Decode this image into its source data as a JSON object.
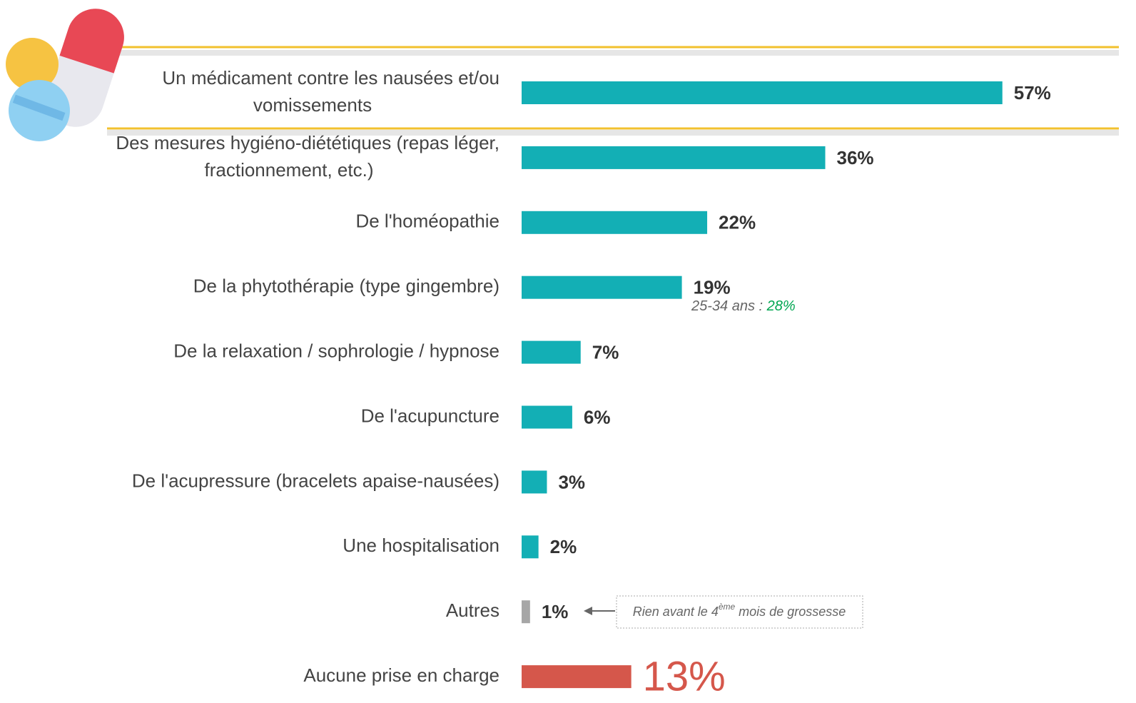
{
  "chart_data": {
    "type": "hbar",
    "categories": [
      "Un médicament contre les nausées et/ou\nvomissements",
      "Des mesures hygiéno-diététiques (repas léger,\nfractionnement, etc.)",
      "De l'homéopathie",
      "De la phytothérapie (type gingembre)",
      "De la relaxation / sophrologie / hypnose",
      "De l'acupuncture",
      "De l'acupressure (bracelets apaise-nausées)",
      "Une hospitalisation",
      "Autres",
      "Aucune prise en charge"
    ],
    "values": [
      57,
      36,
      22,
      19,
      7,
      6,
      3,
      2,
      1,
      13
    ],
    "value_labels": [
      "57%",
      "36%",
      "22%",
      "19%",
      "7%",
      "6%",
      "3%",
      "2%",
      "1%",
      "13%"
    ],
    "colors": [
      "#13afb5",
      "#13afb5",
      "#13afb5",
      "#13afb5",
      "#13afb5",
      "#13afb5",
      "#13afb5",
      "#13afb5",
      "#a6a6a6",
      "#d5574b"
    ],
    "annotations": [
      {
        "text": "25-34 ans : ",
        "highlight": "28%"
      },
      {
        "parts": [
          "Rien avant le 4",
          "ème",
          " mois de grossesse"
        ]
      }
    ]
  }
}
